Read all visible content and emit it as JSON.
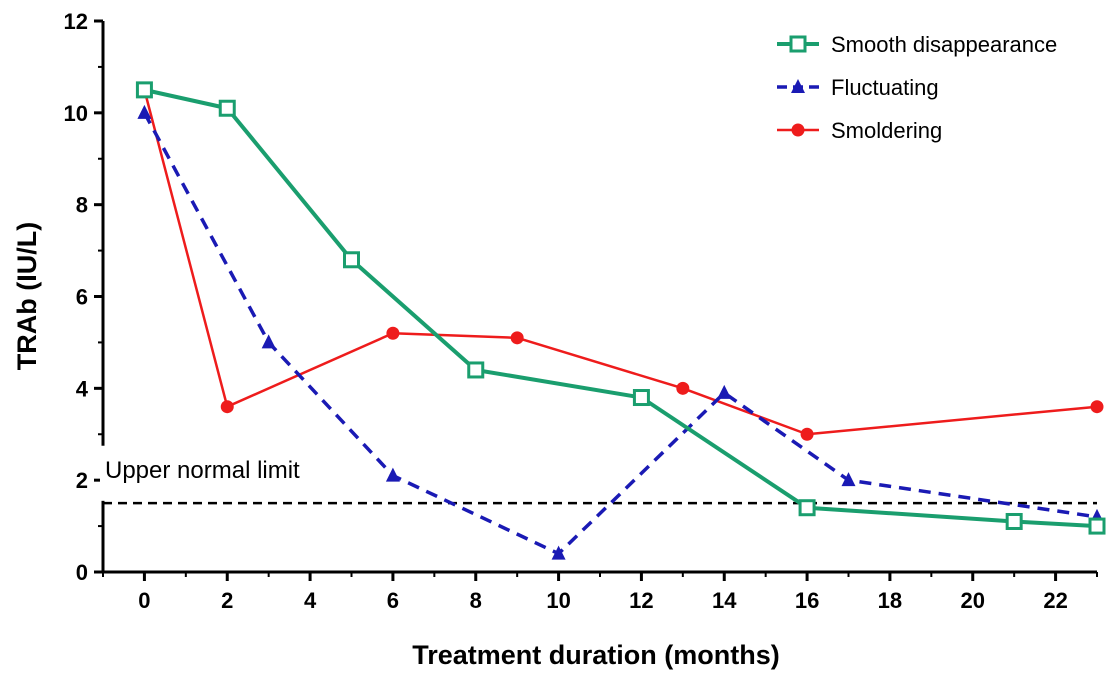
{
  "chart_data": {
    "type": "line",
    "title": "",
    "xlabel": "Treatment duration (months)",
    "ylabel": "TRAb (IU/L)",
    "xlim": [
      -1,
      23
    ],
    "ylim": [
      0,
      12
    ],
    "x_ticks": [
      0,
      2,
      4,
      6,
      8,
      10,
      12,
      14,
      16,
      18,
      20,
      22
    ],
    "y_ticks": [
      0,
      2,
      4,
      6,
      8,
      10,
      12
    ],
    "grid": false,
    "legend_position": "top-right",
    "series": [
      {
        "name": "Smooth disappearance",
        "color": "#1a9e6e",
        "line_style": "solid",
        "marker": "open-square",
        "x": [
          0,
          2,
          5,
          8,
          12,
          16,
          21,
          23
        ],
        "y": [
          10.5,
          10.1,
          6.8,
          4.4,
          3.8,
          1.4,
          1.1,
          1.0
        ]
      },
      {
        "name": "Fluctuating",
        "color": "#1a1ab4",
        "line_style": "dashed",
        "marker": "triangle",
        "x": [
          0,
          3,
          6,
          10,
          14,
          17,
          23
        ],
        "y": [
          10.0,
          5.0,
          2.1,
          0.4,
          3.9,
          2.0,
          1.2
        ]
      },
      {
        "name": "Smoldering",
        "color": "#ee1c1c",
        "line_style": "solid",
        "marker": "circle",
        "x": [
          0,
          2,
          6,
          9,
          13,
          16,
          23
        ],
        "y": [
          10.5,
          3.6,
          5.2,
          5.1,
          4.0,
          3.0,
          3.6
        ]
      }
    ],
    "reference_line": {
      "y": 1.5,
      "label": "Upper normal limit",
      "line_style": "dashed",
      "color": "#000000"
    }
  }
}
